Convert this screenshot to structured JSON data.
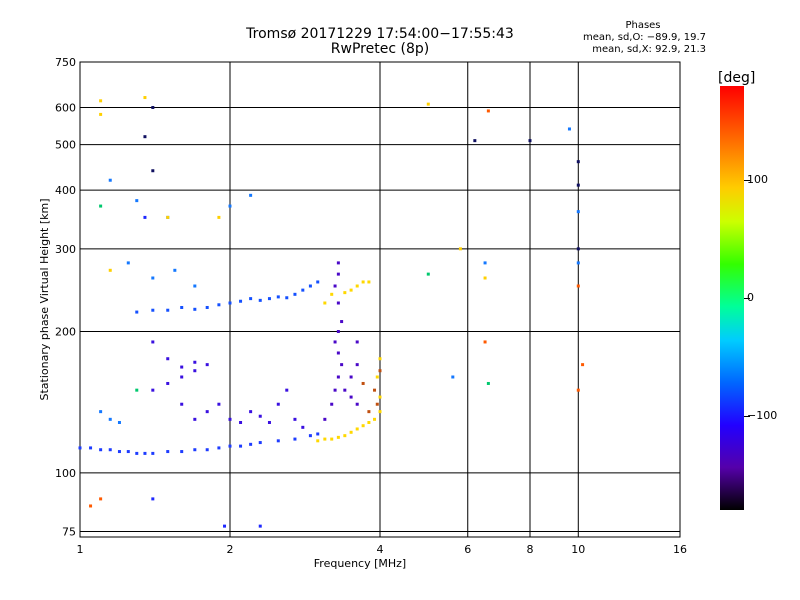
{
  "title_line1": "Tromsø 20171229 17:54:00−17:55:43",
  "title_line2": "RwPretec (8p)",
  "phases": {
    "heading": "Phases",
    "line1": "mean, sd,O: −89.9, 19.7",
    "line2": "mean, sd,X:  92.9, 21.3"
  },
  "colorbar": {
    "unit": "[deg]",
    "ticks": [
      {
        "value": 100,
        "label": "100"
      },
      {
        "value": 0,
        "label": "0"
      },
      {
        "value": -100,
        "label": "−100"
      }
    ],
    "range": [
      -180,
      180
    ]
  },
  "chart_data": {
    "type": "scatter",
    "title": "Tromsø 20171229 17:54:00−17:55:43 RwPretec (8p)",
    "xlabel": "Frequency [MHz]",
    "ylabel": "Stationary phase Virtual Height [km]",
    "xscale": "log",
    "yscale": "log",
    "xlim": [
      1,
      16
    ],
    "ylim": [
      73,
      750
    ],
    "x_ticks": [
      1,
      2,
      4,
      6,
      8,
      10,
      16
    ],
    "x_tick_labels": [
      "1",
      "2",
      "4",
      "6",
      "8",
      "10",
      "16"
    ],
    "y_ticks": [
      75,
      100,
      200,
      300,
      400,
      500,
      600,
      750
    ],
    "y_tick_labels": [
      "75",
      "100",
      "200",
      "300",
      "400",
      "500",
      "600",
      "750"
    ],
    "grid": true,
    "series": [
      {
        "color": "#1e3cff",
        "points": [
          [
            1.0,
            113
          ],
          [
            1.05,
            113
          ],
          [
            1.1,
            112
          ],
          [
            1.15,
            112
          ],
          [
            1.2,
            111
          ],
          [
            1.25,
            111
          ],
          [
            1.3,
            110
          ],
          [
            1.35,
            110
          ],
          [
            1.4,
            110
          ],
          [
            1.5,
            111
          ],
          [
            1.6,
            111
          ],
          [
            1.7,
            112
          ],
          [
            1.8,
            112
          ],
          [
            1.9,
            113
          ],
          [
            2.0,
            114
          ],
          [
            2.1,
            114
          ],
          [
            2.2,
            115
          ],
          [
            2.3,
            116
          ],
          [
            2.5,
            117
          ],
          [
            2.7,
            118
          ],
          [
            2.9,
            120
          ],
          [
            3.0,
            121
          ]
        ]
      },
      {
        "color": "#1450ff",
        "points": [
          [
            1.3,
            220
          ],
          [
            1.4,
            222
          ],
          [
            1.5,
            222
          ],
          [
            1.6,
            225
          ],
          [
            1.7,
            223
          ],
          [
            1.8,
            225
          ],
          [
            1.9,
            228
          ],
          [
            2.0,
            230
          ],
          [
            2.1,
            232
          ],
          [
            2.2,
            235
          ],
          [
            2.3,
            233
          ],
          [
            2.4,
            235
          ],
          [
            2.5,
            237
          ],
          [
            2.6,
            236
          ],
          [
            2.7,
            240
          ],
          [
            2.8,
            245
          ],
          [
            2.9,
            250
          ],
          [
            3.0,
            255
          ]
        ]
      },
      {
        "color": "#3a10e0",
        "points": [
          [
            1.4,
            150
          ],
          [
            1.5,
            155
          ],
          [
            1.6,
            160
          ],
          [
            1.7,
            165
          ],
          [
            1.8,
            170
          ],
          [
            1.6,
            140
          ],
          [
            1.7,
            130
          ],
          [
            1.8,
            135
          ],
          [
            1.9,
            140
          ],
          [
            2.0,
            130
          ],
          [
            2.1,
            128
          ],
          [
            2.2,
            135
          ],
          [
            2.3,
            132
          ],
          [
            2.4,
            128
          ],
          [
            2.5,
            140
          ],
          [
            2.6,
            150
          ],
          [
            2.7,
            130
          ],
          [
            2.8,
            125
          ],
          [
            1.4,
            190
          ],
          [
            1.5,
            175
          ],
          [
            1.6,
            168
          ],
          [
            1.7,
            172
          ]
        ]
      },
      {
        "color": "#4a08c8",
        "points": [
          [
            3.1,
            130
          ],
          [
            3.2,
            140
          ],
          [
            3.25,
            150
          ],
          [
            3.3,
            160
          ],
          [
            3.35,
            170
          ],
          [
            3.3,
            180
          ],
          [
            3.25,
            190
          ],
          [
            3.3,
            200
          ],
          [
            3.35,
            210
          ],
          [
            3.3,
            230
          ],
          [
            3.25,
            250
          ],
          [
            3.3,
            265
          ],
          [
            3.4,
            150
          ],
          [
            3.5,
            145
          ],
          [
            3.6,
            140
          ],
          [
            3.5,
            160
          ],
          [
            3.6,
            170
          ],
          [
            3.6,
            190
          ],
          [
            3.3,
            280
          ]
        ]
      },
      {
        "color": "#ffd800",
        "points": [
          [
            3.0,
            117
          ],
          [
            3.1,
            118
          ],
          [
            3.2,
            118
          ],
          [
            3.3,
            119
          ],
          [
            3.4,
            120
          ],
          [
            3.5,
            122
          ],
          [
            3.6,
            124
          ],
          [
            3.7,
            126
          ],
          [
            3.8,
            128
          ],
          [
            3.9,
            130
          ],
          [
            4.0,
            135
          ],
          [
            4.0,
            145
          ],
          [
            3.95,
            160
          ],
          [
            4.0,
            175
          ],
          [
            3.6,
            250
          ],
          [
            3.7,
            255
          ],
          [
            3.8,
            255
          ],
          [
            3.5,
            245
          ],
          [
            3.4,
            242
          ],
          [
            3.2,
            240
          ],
          [
            3.1,
            230
          ]
        ]
      },
      {
        "color": "#c05010",
        "points": [
          [
            3.9,
            150
          ],
          [
            3.95,
            140
          ],
          [
            4.0,
            165
          ],
          [
            3.8,
            135
          ],
          [
            3.7,
            155
          ]
        ]
      },
      {
        "color": "#1478ff",
        "points": [
          [
            1.15,
            130
          ],
          [
            1.2,
            128
          ],
          [
            1.1,
            135
          ],
          [
            1.25,
            280
          ],
          [
            1.4,
            260
          ],
          [
            1.55,
            270
          ],
          [
            1.7,
            250
          ],
          [
            2.2,
            390
          ],
          [
            2.0,
            370
          ],
          [
            1.5,
            350
          ],
          [
            1.3,
            380
          ],
          [
            1.15,
            420
          ],
          [
            6.5,
            280
          ],
          [
            5.6,
            160
          ],
          [
            10,
            280
          ],
          [
            10,
            360
          ],
          [
            9.6,
            540
          ]
        ]
      },
      {
        "color": "#101060",
        "points": [
          [
            6.2,
            510
          ],
          [
            8.0,
            510
          ],
          [
            10.0,
            460
          ],
          [
            10.0,
            410
          ],
          [
            10.0,
            300
          ],
          [
            1.4,
            600
          ],
          [
            1.35,
            520
          ],
          [
            1.4,
            440
          ]
        ]
      },
      {
        "color": "#ffd000",
        "points": [
          [
            1.1,
            620
          ],
          [
            1.35,
            630
          ],
          [
            1.5,
            350
          ],
          [
            1.9,
            350
          ],
          [
            5.0,
            610
          ],
          [
            5.8,
            300
          ],
          [
            6.5,
            260
          ],
          [
            1.15,
            270
          ],
          [
            1.1,
            580
          ]
        ]
      },
      {
        "color": "#00c86e",
        "points": [
          [
            1.1,
            370
          ],
          [
            1.3,
            150
          ],
          [
            5.0,
            265
          ],
          [
            6.6,
            155
          ]
        ]
      },
      {
        "color": "#ff5a00",
        "points": [
          [
            1.05,
            85
          ],
          [
            1.1,
            88
          ],
          [
            6.6,
            590
          ],
          [
            6.5,
            190
          ],
          [
            10.0,
            250
          ],
          [
            10.2,
            170
          ],
          [
            10,
            150
          ]
        ]
      },
      {
        "color": "#1e28ff",
        "points": [
          [
            1.4,
            88
          ],
          [
            1.95,
            77
          ],
          [
            2.3,
            77
          ],
          [
            1.35,
            350
          ]
        ]
      }
    ]
  }
}
